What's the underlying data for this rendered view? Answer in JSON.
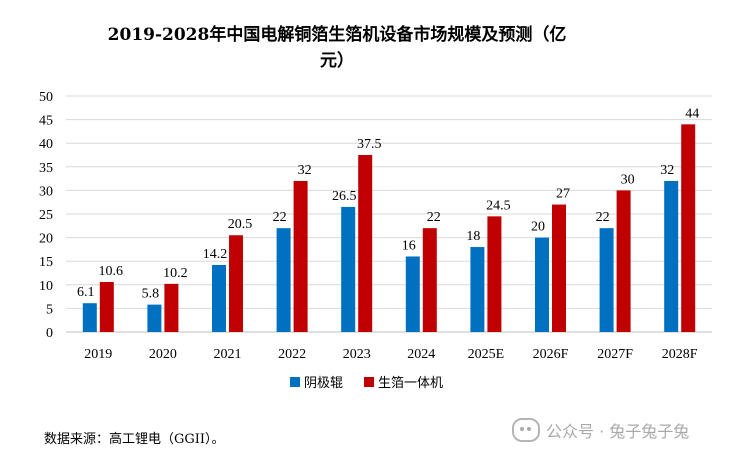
{
  "chart_data": {
    "type": "bar",
    "title_line1": "2019-2028年中国电解铜箔生箔机设备市场规模及预测（亿",
    "title_line2": "元）",
    "categories": [
      "2019",
      "2020",
      "2021",
      "2022",
      "2023",
      "2024",
      "2025E",
      "2026F",
      "2027F",
      "2028F"
    ],
    "series": [
      {
        "name": "阴极辊",
        "color": "#0070C0",
        "values": [
          6.1,
          5.8,
          14.2,
          22,
          26.5,
          16,
          18,
          20,
          22,
          32
        ]
      },
      {
        "name": "生箔一体机",
        "color": "#C00000",
        "values": [
          10.6,
          10.2,
          20.5,
          32,
          37.5,
          22,
          24.5,
          27,
          30,
          44
        ]
      }
    ],
    "ylim": [
      0,
      50
    ],
    "yticks": [
      0,
      5,
      10,
      15,
      20,
      25,
      30,
      35,
      40,
      45,
      50
    ],
    "grid": true,
    "legend_position": "bottom",
    "xlabel": "",
    "ylabel": ""
  },
  "source_note": "数据来源：高工锂电（GGII）。",
  "watermark": "公众号 · 兔子兔子兔",
  "gridline_color": "#D9D9D9"
}
